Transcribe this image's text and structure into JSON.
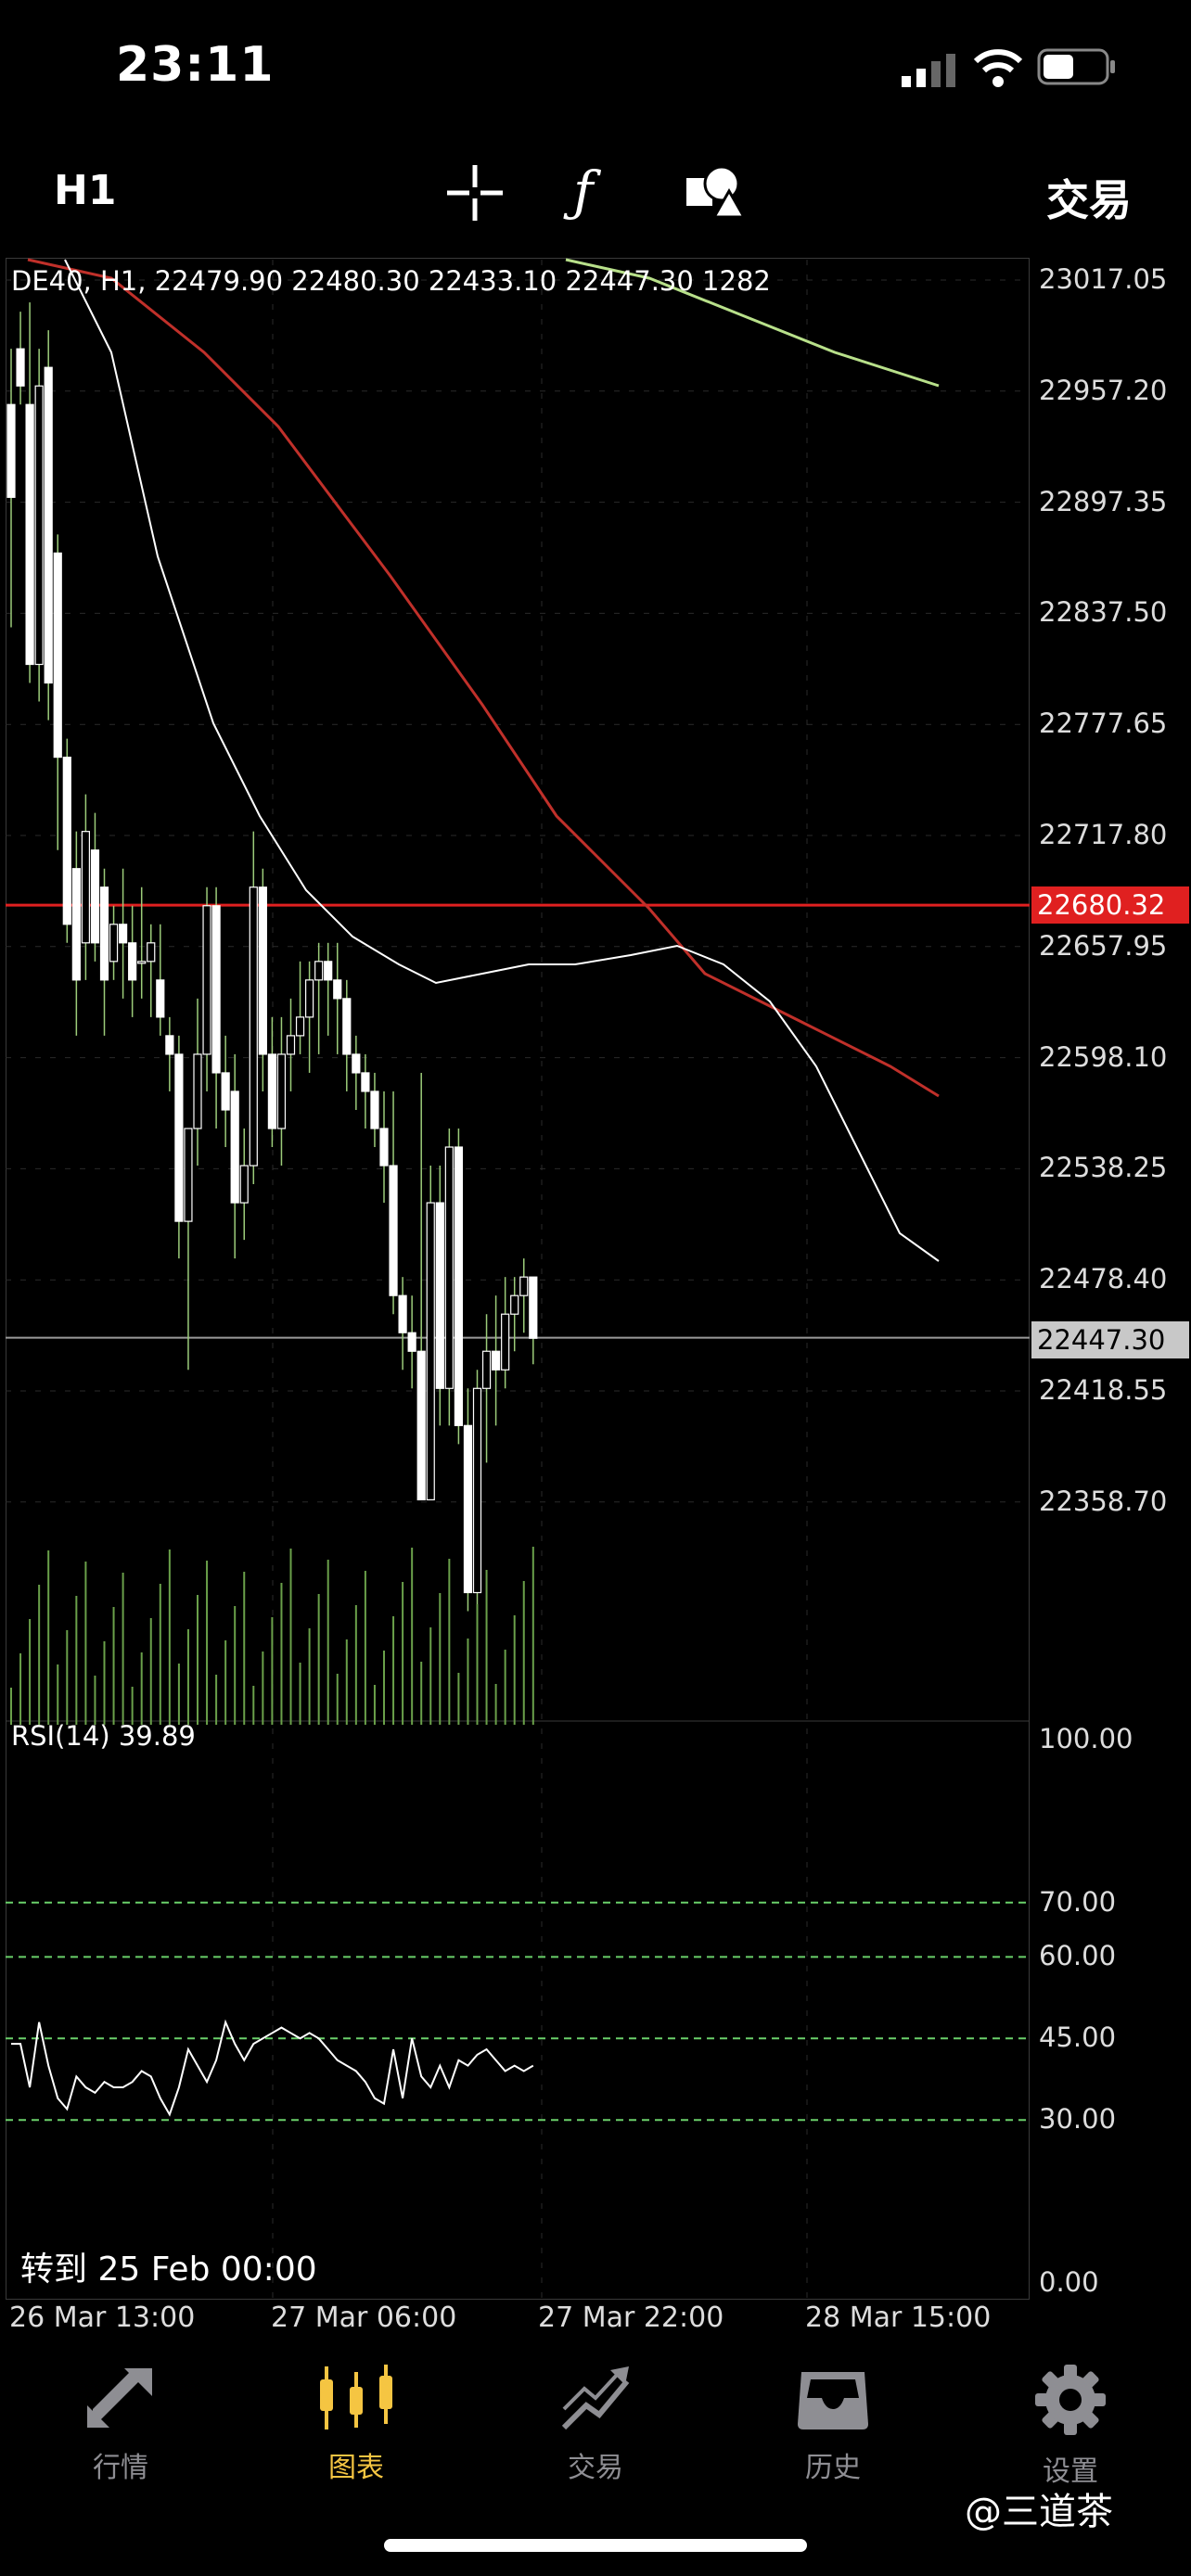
{
  "status_bar": {
    "time": "23:11"
  },
  "toolbar": {
    "timeframe": "H1",
    "crosshair_icon": "crosshair-icon",
    "indicator_icon": "function-icon",
    "objects_icon": "shapes-icon",
    "trade_label": "交易"
  },
  "chart": {
    "info_line": "DE40, H1, 22479.90 22480.30 22433.10 22447.30 1282",
    "price_axis": [
      "23017.05",
      "22957.20",
      "22897.35",
      "22837.50",
      "22777.65",
      "22717.80",
      "22657.95",
      "22598.10",
      "22538.25",
      "22478.40",
      "22418.55",
      "22358.70"
    ],
    "alert_price": "22680.32",
    "current_price": "22447.30",
    "rsi_label": "RSI(14) 39.89",
    "rsi_axis": [
      "100.00",
      "70.00",
      "60.00",
      "45.00",
      "30.00",
      "0.00"
    ],
    "time_axis": [
      "26 Mar 13:00",
      "27 Mar 06:00",
      "27 Mar 22:00",
      "28 Mar 15:00"
    ],
    "goto_label": "转到 25 Feb 00:00",
    "colors": {
      "alert_line": "#e02020",
      "ma_slow": "#c0302a",
      "ma_green": "#b8e08a",
      "level_line": "#6ad06a"
    }
  },
  "bottom_nav": [
    {
      "label": "行情",
      "icon": "quotes-icon"
    },
    {
      "label": "图表",
      "icon": "chart-candles-icon",
      "active": true
    },
    {
      "label": "交易",
      "icon": "trade-icon"
    },
    {
      "label": "历史",
      "icon": "history-inbox-icon"
    },
    {
      "label": "设置",
      "icon": "gear-icon"
    }
  ],
  "watermark": "@三道茶"
}
